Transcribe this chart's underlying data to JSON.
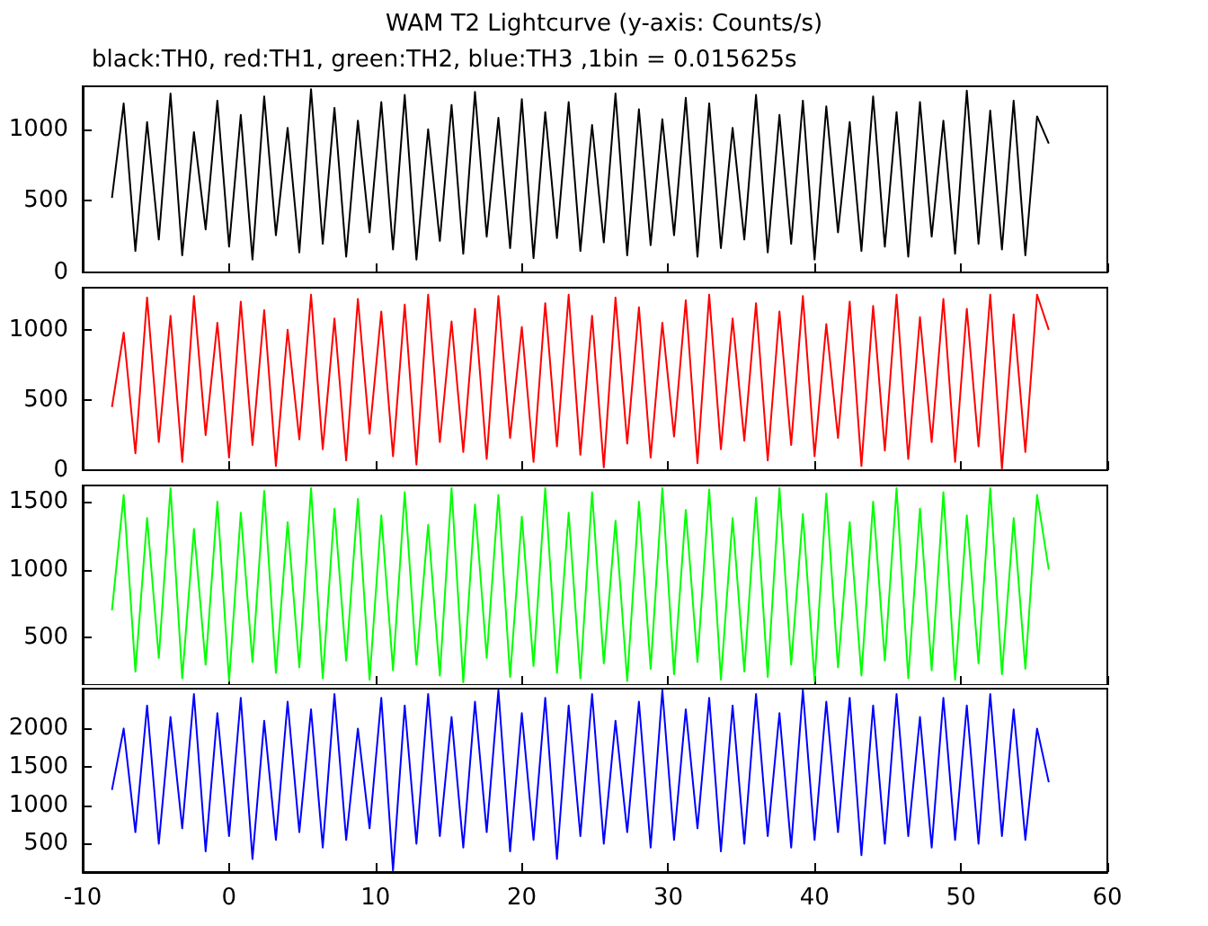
{
  "chart_data": [
    {
      "type": "line",
      "title": "WAM T2 Lightcurve (y-axis: Counts/s)",
      "subtitle": "black:TH0, red:TH1, green:TH2, blue:TH3 ,1bin = 0.015625s",
      "tick_labels": "y",
      "xlim": [
        -10,
        60
      ],
      "xticks": [
        -10,
        0,
        10,
        20,
        30,
        40,
        50,
        60
      ],
      "ylim": [
        0,
        1300
      ],
      "yticks": [
        0,
        500,
        1000
      ],
      "x": [
        -8,
        -7.2,
        -6.4,
        -5.6,
        -4.8,
        -4,
        -3.2,
        -2.4,
        -1.6,
        -0.8,
        0,
        0.8,
        1.6,
        2.4,
        3.2,
        4,
        4.8,
        5.6,
        6.4,
        7.2,
        8,
        8.8,
        9.6,
        10.4,
        11.2,
        12,
        12.8,
        13.6,
        14.4,
        15.2,
        16,
        16.8,
        17.6,
        18.4,
        19.2,
        20,
        20.8,
        21.6,
        22.4,
        23.2,
        24,
        24.8,
        25.6,
        26.4,
        27.2,
        28,
        28.8,
        29.6,
        30.4,
        31.2,
        32,
        32.8,
        33.6,
        34.4,
        35.2,
        36,
        36.8,
        37.6,
        38.4,
        39.2,
        40,
        40.8,
        41.6,
        42.4,
        43.2,
        44,
        44.8,
        45.6,
        46.4,
        47.2,
        48,
        48.8,
        49.6,
        50.4,
        51.2,
        52,
        52.8,
        53.6,
        54.4,
        55.2,
        56
      ],
      "series": [
        {
          "color": "#000000",
          "values": [
            520,
            1180,
            150,
            1050,
            230,
            1250,
            120,
            980,
            300,
            1200,
            180,
            1100,
            90,
            1230,
            260,
            1010,
            140,
            1280,
            200,
            1150,
            110,
            1060,
            280,
            1190,
            160,
            1240,
            90,
            1000,
            220,
            1170,
            130,
            1260,
            250,
            1080,
            170,
            1210,
            100,
            1120,
            240,
            1190,
            150,
            1030,
            210,
            1250,
            120,
            1140,
            190,
            1070,
            260,
            1220,
            110,
            1180,
            170,
            1010,
            230,
            1240,
            140,
            1100,
            200,
            1200,
            90,
            1160,
            280,
            1050,
            150,
            1230,
            180,
            1120,
            110,
            1190,
            250,
            1060,
            130,
            1270,
            200,
            1130,
            160,
            1200,
            120,
            1090,
            900
          ]
        }
      ]
    },
    {
      "type": "line",
      "tick_labels": "y",
      "xlim": [
        -10,
        60
      ],
      "xticks": [
        -10,
        0,
        10,
        20,
        30,
        40,
        50,
        60
      ],
      "ylim": [
        0,
        1300
      ],
      "yticks": [
        0,
        500,
        1000
      ],
      "x": [
        -8,
        -7.2,
        -6.4,
        -5.6,
        -4.8,
        -4,
        -3.2,
        -2.4,
        -1.6,
        -0.8,
        0,
        0.8,
        1.6,
        2.4,
        3.2,
        4,
        4.8,
        5.6,
        6.4,
        7.2,
        8,
        8.8,
        9.6,
        10.4,
        11.2,
        12,
        12.8,
        13.6,
        14.4,
        15.2,
        16,
        16.8,
        17.6,
        18.4,
        19.2,
        20,
        20.8,
        21.6,
        22.4,
        23.2,
        24,
        24.8,
        25.6,
        26.4,
        27.2,
        28,
        28.8,
        29.6,
        30.4,
        31.2,
        32,
        32.8,
        33.6,
        34.4,
        35.2,
        36,
        36.8,
        37.6,
        38.4,
        39.2,
        40,
        40.8,
        41.6,
        42.4,
        43.2,
        44,
        44.8,
        45.6,
        46.4,
        47.2,
        48,
        48.8,
        49.6,
        50.4,
        51.2,
        52,
        52.8,
        53.6,
        54.4,
        55.2,
        56
      ],
      "series": [
        {
          "color": "#ff0000",
          "values": [
            450,
            980,
            120,
            1230,
            200,
            1100,
            60,
            1240,
            250,
            1050,
            90,
            1200,
            180,
            1140,
            30,
            1000,
            220,
            1250,
            150,
            1080,
            70,
            1220,
            260,
            1130,
            100,
            1180,
            40,
            1250,
            200,
            1060,
            130,
            1150,
            80,
            1240,
            230,
            1020,
            60,
            1190,
            170,
            1250,
            110,
            1100,
            20,
            1230,
            190,
            1160,
            90,
            1050,
            240,
            1210,
            50,
            1250,
            150,
            1080,
            210,
            1190,
            70,
            1130,
            180,
            1240,
            100,
            1040,
            230,
            1200,
            30,
            1170,
            140,
            1250,
            80,
            1090,
            200,
            1220,
            60,
            1150,
            170,
            1250,
            10,
            1110,
            130,
            1250,
            1000
          ]
        }
      ]
    },
    {
      "type": "line",
      "tick_labels": "y",
      "xlim": [
        -10,
        60
      ],
      "xticks": [
        -10,
        0,
        10,
        20,
        30,
        40,
        50,
        60
      ],
      "ylim": [
        150,
        1620
      ],
      "yticks": [
        500,
        1000,
        1500
      ],
      "x": [
        -8,
        -7.2,
        -6.4,
        -5.6,
        -4.8,
        -4,
        -3.2,
        -2.4,
        -1.6,
        -0.8,
        0,
        0.8,
        1.6,
        2.4,
        3.2,
        4,
        4.8,
        5.6,
        6.4,
        7.2,
        8,
        8.8,
        9.6,
        10.4,
        11.2,
        12,
        12.8,
        13.6,
        14.4,
        15.2,
        16,
        16.8,
        17.6,
        18.4,
        19.2,
        20,
        20.8,
        21.6,
        22.4,
        23.2,
        24,
        24.8,
        25.6,
        26.4,
        27.2,
        28,
        28.8,
        29.6,
        30.4,
        31.2,
        32,
        32.8,
        33.6,
        34.4,
        35.2,
        36,
        36.8,
        37.6,
        38.4,
        39.2,
        40,
        40.8,
        41.6,
        42.4,
        43.2,
        44,
        44.8,
        45.6,
        46.4,
        47.2,
        48,
        48.8,
        49.6,
        50.4,
        51.2,
        52,
        52.8,
        53.6,
        54.4,
        55.2,
        56
      ],
      "series": [
        {
          "color": "#00ff00",
          "values": [
            700,
            1550,
            250,
            1380,
            350,
            1600,
            200,
            1300,
            300,
            1500,
            180,
            1420,
            320,
            1580,
            240,
            1350,
            280,
            1600,
            200,
            1450,
            330,
            1520,
            190,
            1400,
            260,
            1570,
            300,
            1330,
            220,
            1600,
            170,
            1480,
            350,
            1550,
            210,
            1390,
            290,
            1600,
            240,
            1420,
            200,
            1570,
            310,
            1360,
            180,
            1500,
            270,
            1600,
            230,
            1440,
            320,
            1590,
            190,
            1380,
            250,
            1530,
            210,
            1600,
            300,
            1410,
            180,
            1560,
            280,
            1350,
            220,
            1500,
            330,
            1600,
            200,
            1450,
            260,
            1570,
            190,
            1400,
            310,
            1600,
            230,
            1380,
            270,
            1550,
            1000
          ]
        }
      ]
    },
    {
      "type": "line",
      "xlim": [
        -10,
        60
      ],
      "xticks": [
        -10,
        0,
        10,
        20,
        30,
        40,
        50,
        60
      ],
      "ylim": [
        130,
        2520
      ],
      "yticks": [
        500,
        1000,
        1500,
        2000
      ],
      "x": [
        -8,
        -7.2,
        -6.4,
        -5.6,
        -4.8,
        -4,
        -3.2,
        -2.4,
        -1.6,
        -0.8,
        0,
        0.8,
        1.6,
        2.4,
        3.2,
        4,
        4.8,
        5.6,
        6.4,
        7.2,
        8,
        8.8,
        9.6,
        10.4,
        11.2,
        12,
        12.8,
        13.6,
        14.4,
        15.2,
        16,
        16.8,
        17.6,
        18.4,
        19.2,
        20,
        20.8,
        21.6,
        22.4,
        23.2,
        24,
        24.8,
        25.6,
        26.4,
        27.2,
        28,
        28.8,
        29.6,
        30.4,
        31.2,
        32,
        32.8,
        33.6,
        34.4,
        35.2,
        36,
        36.8,
        37.6,
        38.4,
        39.2,
        40,
        40.8,
        41.6,
        42.4,
        43.2,
        44,
        44.8,
        45.6,
        46.4,
        47.2,
        48,
        48.8,
        49.6,
        50.4,
        51.2,
        52,
        52.8,
        53.6,
        54.4,
        55.2,
        56
      ],
      "series": [
        {
          "color": "#0000ff",
          "values": [
            1200,
            2000,
            650,
            2300,
            500,
            2150,
            700,
            2450,
            400,
            2200,
            600,
            2400,
            300,
            2100,
            550,
            2350,
            650,
            2250,
            450,
            2450,
            550,
            2000,
            700,
            2400,
            150,
            2300,
            500,
            2450,
            600,
            2150,
            450,
            2350,
            650,
            2500,
            400,
            2200,
            550,
            2400,
            300,
            2300,
            600,
            2450,
            500,
            2100,
            650,
            2350,
            450,
            2500,
            550,
            2250,
            700,
            2400,
            400,
            2300,
            500,
            2450,
            600,
            2200,
            450,
            2500,
            550,
            2350,
            650,
            2400,
            350,
            2300,
            500,
            2450,
            600,
            2150,
            450,
            2400,
            550,
            2300,
            500,
            2450,
            600,
            2250,
            550,
            2000,
            1300
          ]
        }
      ]
    }
  ]
}
